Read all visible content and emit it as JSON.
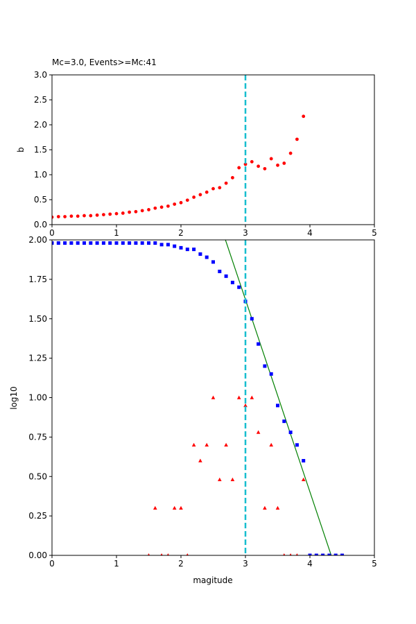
{
  "chart_data": [
    {
      "type": "scatter",
      "title": "Mc=3.0, Events>=Mc:41",
      "xlabel": "",
      "ylabel": "b",
      "xlim": [
        0,
        5
      ],
      "ylim": [
        0,
        3
      ],
      "xticks": [
        "0",
        "1",
        "2",
        "3",
        "4",
        "5"
      ],
      "yticks": [
        "0.0",
        "0.5",
        "1.0",
        "1.5",
        "2.0",
        "2.5",
        "3.0"
      ],
      "grid": false,
      "vline": {
        "x": 3.0,
        "color": "#17becf",
        "style": "dashed"
      },
      "series": [
        {
          "marker": "circle",
          "color": "#ff0000",
          "x": [
            0.0,
            0.1,
            0.2,
            0.3,
            0.4,
            0.5,
            0.6,
            0.7,
            0.8,
            0.9,
            1.0,
            1.1,
            1.2,
            1.3,
            1.4,
            1.5,
            1.6,
            1.7,
            1.8,
            1.9,
            2.0,
            2.1,
            2.2,
            2.3,
            2.4,
            2.5,
            2.6,
            2.7,
            2.8,
            2.9,
            3.0,
            3.1,
            3.2,
            3.3,
            3.4,
            3.5,
            3.6,
            3.7,
            3.8,
            3.9
          ],
          "y": [
            0.15,
            0.16,
            0.16,
            0.17,
            0.17,
            0.18,
            0.18,
            0.19,
            0.2,
            0.21,
            0.22,
            0.23,
            0.25,
            0.26,
            0.28,
            0.3,
            0.33,
            0.35,
            0.37,
            0.41,
            0.44,
            0.49,
            0.55,
            0.6,
            0.65,
            0.72,
            0.74,
            0.83,
            0.94,
            1.14,
            1.21,
            1.26,
            1.17,
            1.12,
            1.32,
            1.19,
            1.23,
            1.43,
            1.71,
            2.17
          ]
        }
      ]
    },
    {
      "type": "scatter",
      "title": "",
      "xlabel": "magitude",
      "ylabel": "log10",
      "xlim": [
        0,
        5
      ],
      "ylim": [
        0,
        2
      ],
      "xticks": [
        "0",
        "1",
        "2",
        "3",
        "4",
        "5"
      ],
      "yticks": [
        "0.00",
        "0.25",
        "0.50",
        "0.75",
        "1.00",
        "1.25",
        "1.50",
        "1.75",
        "2.00"
      ],
      "grid": false,
      "vline": {
        "x": 3.0,
        "color": "#17becf",
        "style": "dashed"
      },
      "fit_line": {
        "color": "#008000",
        "x": [
          2.69,
          4.33
        ],
        "y": [
          2.0,
          0.0
        ]
      },
      "series": [
        {
          "marker": "square",
          "color": "#0000ff",
          "x": [
            0.0,
            0.1,
            0.2,
            0.3,
            0.4,
            0.5,
            0.6,
            0.7,
            0.8,
            0.9,
            1.0,
            1.1,
            1.2,
            1.3,
            1.4,
            1.5,
            1.6,
            1.7,
            1.8,
            1.9,
            2.0,
            2.1,
            2.2,
            2.3,
            2.4,
            2.5,
            2.6,
            2.7,
            2.8,
            2.9,
            3.0,
            3.1,
            3.2,
            3.3,
            3.4,
            3.5,
            3.6,
            3.7,
            3.8,
            3.9,
            4.0,
            4.1,
            4.2,
            4.3,
            4.4,
            4.5
          ],
          "y": [
            1.98,
            1.98,
            1.98,
            1.98,
            1.98,
            1.98,
            1.98,
            1.98,
            1.98,
            1.98,
            1.98,
            1.98,
            1.98,
            1.98,
            1.98,
            1.98,
            1.98,
            1.97,
            1.97,
            1.96,
            1.95,
            1.94,
            1.94,
            1.91,
            1.89,
            1.86,
            1.8,
            1.77,
            1.73,
            1.7,
            1.61,
            1.5,
            1.34,
            1.2,
            1.15,
            0.95,
            0.85,
            0.78,
            0.7,
            0.6,
            0.0,
            0.0,
            0.0,
            0.0,
            0.0,
            0.0
          ]
        },
        {
          "marker": "triangle",
          "color": "#ff0000",
          "x": [
            1.5,
            1.6,
            1.7,
            1.8,
            1.9,
            2.0,
            2.1,
            2.2,
            2.3,
            2.4,
            2.5,
            2.6,
            2.7,
            2.8,
            2.9,
            3.0,
            3.1,
            3.2,
            3.3,
            3.4,
            3.5,
            3.6,
            3.7,
            3.8,
            3.9
          ],
          "y": [
            0.0,
            0.3,
            0.0,
            0.0,
            0.3,
            0.3,
            0.0,
            0.7,
            0.6,
            0.7,
            1.0,
            0.48,
            0.7,
            0.48,
            1.0,
            0.95,
            1.0,
            0.78,
            0.3,
            0.7,
            0.3,
            0.0,
            0.0,
            0.0,
            0.48
          ]
        }
      ]
    }
  ]
}
